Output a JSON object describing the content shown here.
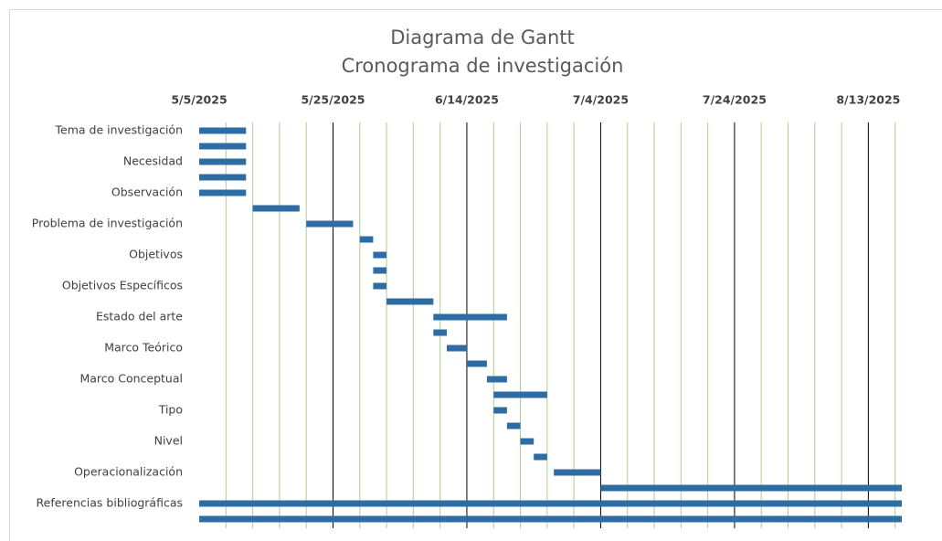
{
  "chart_data": {
    "type": "gantt",
    "title": "Diagrama de Gantt",
    "subtitle": "Cronograma de investigación",
    "categories": [
      "Tema de investigación",
      null,
      "Necesidad",
      null,
      "Observación",
      null,
      "Problema de investigación",
      null,
      "Objetivos",
      null,
      "Objetivos Específicos",
      null,
      "Estado del arte",
      null,
      "Marco Teórico",
      null,
      "Marco Conceptual",
      null,
      "Tipo",
      null,
      "Nivel",
      null,
      "Operacionalización",
      null,
      "Referencias bibliográficas",
      null
    ],
    "series": [
      {
        "color": "#2e6da4",
        "start": [
          "5/5/2025",
          "5/5/2025",
          "5/5/2025",
          "5/5/2025",
          "5/5/2025",
          "5/13/2025",
          "5/21/2025",
          "5/29/2025",
          "5/31/2025",
          "5/31/2025",
          "5/31/2025",
          "6/2/2025",
          "6/9/2025",
          "6/9/2025",
          "6/11/2025",
          "6/14/2025",
          "6/17/2025",
          "6/18/2025",
          "6/18/2025",
          "6/20/2025",
          "6/22/2025",
          "6/24/2025",
          "6/27/2025",
          "7/4/2025",
          "5/5/2025",
          "5/5/2025"
        ],
        "end": [
          "5/12/2025",
          "5/12/2025",
          "5/12/2025",
          "5/12/2025",
          "5/12/2025",
          "5/20/2025",
          "5/28/2025",
          "5/31/2025",
          "6/2/2025",
          "6/2/2025",
          "6/2/2025",
          "6/9/2025",
          "6/20/2025",
          "6/11/2025",
          "6/14/2025",
          "6/17/2025",
          "6/20/2025",
          "6/26/2025",
          "6/20/2025",
          "6/22/2025",
          "6/24/2025",
          "6/26/2025",
          "7/4/2025",
          "8/18/2025",
          "8/18/2025",
          "8/18/2025"
        ]
      }
    ],
    "xlim": [
      "5/5/2025",
      "8/18/2025"
    ],
    "xticks": [
      "5/5/2025",
      "5/25/2025",
      "6/14/2025",
      "7/4/2025",
      "7/24/2025",
      "8/13/2025"
    ],
    "minor_grid_days": 4,
    "major_grid_color": "#000000",
    "minor_grid_color": "#a9d18e"
  }
}
